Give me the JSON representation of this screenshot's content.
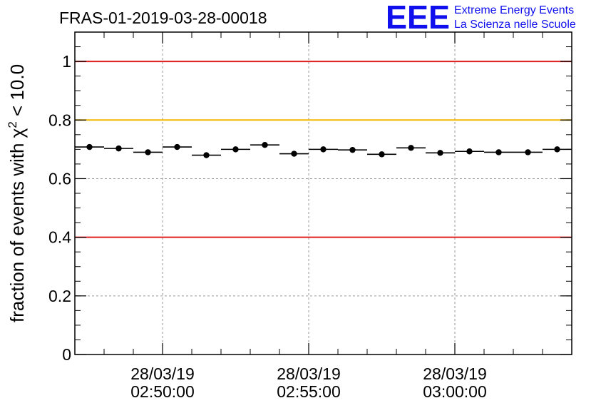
{
  "chart_data": {
    "type": "scatter",
    "title": "FRAS-01-2019-03-28-00018",
    "ylabel_main": "fraction of events with χ",
    "ylabel_sup": "2",
    "ylabel_tail": " < 10.0",
    "xlabel": "",
    "ylim": [
      0,
      1.1
    ],
    "y_ticks": [
      "0",
      "0.2",
      "0.4",
      "0.6",
      "0.8",
      "1"
    ],
    "x_tick_labels": [
      {
        "date": "28/03/19",
        "time": "02:50:00",
        "minute": 5.0
      },
      {
        "date": "28/03/19",
        "time": "02:55:00",
        "minute": 10.0
      },
      {
        "date": "28/03/19",
        "time": "03:00:00",
        "minute": 15.0
      }
    ],
    "x_range_minutes": [
      2.0,
      19.0
    ],
    "x_minor_step_minutes": 1.0,
    "bin_width_minutes": 1.0,
    "grid": true,
    "reference_lines": [
      {
        "y": 1.0,
        "color": "#e02020"
      },
      {
        "y": 0.8,
        "color": "#f2b800"
      },
      {
        "y": 0.4,
        "color": "#e02020"
      }
    ],
    "points_x_minutes": [
      2.5,
      3.5,
      4.5,
      5.5,
      6.5,
      7.5,
      8.5,
      9.5,
      10.5,
      11.5,
      12.5,
      13.5,
      14.5,
      15.5,
      16.5,
      17.5,
      18.5
    ],
    "points_y": [
      0.708,
      0.703,
      0.69,
      0.708,
      0.68,
      0.7,
      0.715,
      0.685,
      0.7,
      0.698,
      0.683,
      0.705,
      0.688,
      0.693,
      0.69,
      0.69,
      0.7
    ]
  },
  "logo": {
    "letters": "EEE",
    "line1": "Extreme Energy Events",
    "line2": "La Scienza nelle Scuole",
    "color": "#1010ee"
  }
}
